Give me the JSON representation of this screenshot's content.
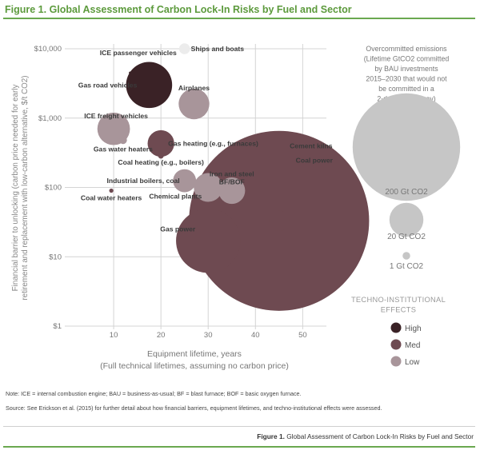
{
  "figure_title": "Figure 1. Global Assessment of Carbon Lock-In Risks by Fuel and Sector",
  "caption": {
    "prefix": "Figure 1.",
    "text": "Global Assessment of Carbon Lock-In Risks by Fuel and Sector"
  },
  "note": "Note: ICE = internal combustion engine; BAU = business-as-usual; BF = blast furnace; BOF = basic oxygen furnace.",
  "source": "Source:  See Erickson et al. (2015) for further detail about how financial barriers, equipment lifetimes, and techno-institutional effects were assessed.",
  "colors": {
    "High": "#3a2226",
    "Med": "#6e4a51",
    "Low": "#a8959a",
    "NA": "#ececec",
    "size_legend": "#c6c6c6",
    "grid": "#d4d4d4",
    "accent": "#5c9a3c"
  },
  "chart_data": {
    "type": "scatter",
    "subtype": "bubble",
    "xlabel": "Equipment lifetime, years",
    "xlabel2": "(Full technical lifetimes, assuming no carbon price)",
    "ylabel": "Financial barrier to unlocking (carbon price needed for early retirement and replacement with low-carbon alternative, $/t CO2)",
    "ylabel_lines": [
      "Financial barrier to unlocking (carbon price needed for early",
      "retirement and replacement with low-carbon alternative, $/t CO2)"
    ],
    "x_ticks": [
      "10",
      "20",
      "30",
      "40",
      "50"
    ],
    "x_tick_values": [
      10,
      20,
      30,
      40,
      50
    ],
    "y_ticks": [
      "$10,000",
      "$1,000",
      "$100",
      "$10",
      "$1"
    ],
    "y_tick_values": [
      10000,
      1000,
      100,
      10,
      1
    ],
    "yscale": "log",
    "xlim": [
      0,
      54
    ],
    "ylim": [
      1,
      10000
    ],
    "grid": true,
    "points": [
      {
        "label": "Ships and boats",
        "x": 25,
        "y": 10000,
        "size_gt": 2,
        "effect": "NA"
      },
      {
        "label": "ICE passenger vehicles",
        "x": 13.5,
        "y": 4500,
        "size_gt": 0,
        "effect": "High"
      },
      {
        "label": "Gas road vehicles",
        "x": 17.5,
        "y": 3000,
        "size_gt": 36,
        "effect": "High"
      },
      {
        "label": "Airplanes",
        "x": 27,
        "y": 1600,
        "size_gt": 16,
        "effect": "Low"
      },
      {
        "label": "ICE freight vehicles",
        "x": 10,
        "y": 700,
        "size_gt": 18,
        "effect": "Low"
      },
      {
        "label": "Gas water heaters",
        "x": 12,
        "y": 480,
        "size_gt": 1,
        "effect": "Low"
      },
      {
        "label": "Gas heating (e.g., furnaces)",
        "x": 20,
        "y": 430,
        "size_gt": 12,
        "effect": "Med"
      },
      {
        "label": "Coal heating (e.g., boilers)",
        "x": 20,
        "y": 285,
        "size_gt": 0.5,
        "effect": "Med"
      },
      {
        "label": "Industrial boilers, coal",
        "x": 25,
        "y": 125,
        "size_gt": 9,
        "effect": "Low"
      },
      {
        "label": "Coal water heaters",
        "x": 9.5,
        "y": 90,
        "size_gt": 0.3,
        "effect": "Med"
      },
      {
        "label": "Chemical plants",
        "x": 30,
        "y": 100,
        "size_gt": 14,
        "effect": "Low"
      },
      {
        "label": "Iron and steel BF/BOF",
        "x": 35,
        "y": 90,
        "size_gt": 12,
        "effect": "Low"
      },
      {
        "label": "Cement kilns",
        "x": 45,
        "y": 33,
        "size_gt": 7,
        "effect": "Med"
      },
      {
        "label": "Coal power",
        "x": 45,
        "y": 33,
        "size_gt": 550,
        "effect": "Med"
      },
      {
        "label": "Gas power",
        "x": 30,
        "y": 17,
        "size_gt": 70,
        "effect": "Med"
      }
    ],
    "size_legend": {
      "title_lines": [
        "Overcommitted emissions",
        "(Lifetime GtCO2 committed",
        "by BAU investments",
        "2015–2030 that would not",
        "be committed in a",
        "2-degree pathway)"
      ],
      "items": [
        {
          "label": "200 Gt CO2",
          "value": 200
        },
        {
          "label": "20 Gt CO2",
          "value": 20
        },
        {
          "label": "1 Gt CO2",
          "value": 1
        }
      ]
    },
    "color_legend": {
      "title_lines": [
        "TECHNO-INSTITUTIONAL",
        "EFFECTS"
      ],
      "items": [
        {
          "label": "High",
          "key": "High"
        },
        {
          "label": "Med",
          "key": "Med"
        },
        {
          "label": "Low",
          "key": "Low"
        }
      ]
    }
  }
}
